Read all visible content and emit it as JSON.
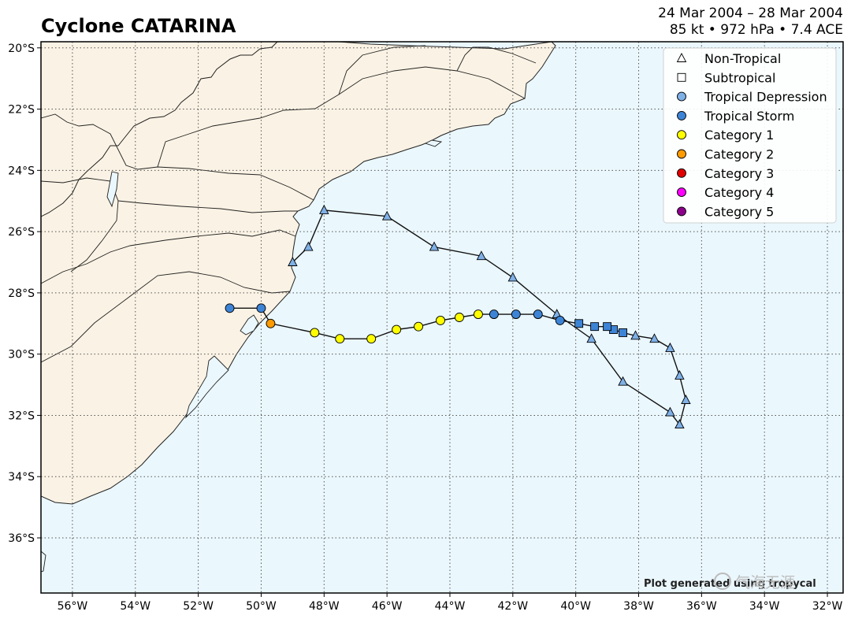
{
  "header": {
    "title": "Cyclone CATARINA",
    "dates": "24 Mar 2004 – 28 Mar 2004",
    "stats": "85 kt • 972 hPa • 7.4 ACE"
  },
  "colors": {
    "land": "#faf2e4",
    "ocean": "#eaf7fd",
    "track": "#111111",
    "tropical_depression": "#7fb0e6",
    "tropical_storm": "#3d84d6",
    "category1": "#ffff00",
    "category2": "#ff9b00",
    "category3": "#e00000",
    "category4": "#ff00ff",
    "category5": "#8b008b"
  },
  "chart_data": {
    "type": "map",
    "xlim": [
      -57,
      -31.5
    ],
    "ylim": [
      -37.8,
      -19.8
    ],
    "grid": true,
    "legend_position": "top-right",
    "x_ticks": [
      {
        "v": -56,
        "label": "56°W"
      },
      {
        "v": -54,
        "label": "54°W"
      },
      {
        "v": -52,
        "label": "52°W"
      },
      {
        "v": -50,
        "label": "50°W"
      },
      {
        "v": -48,
        "label": "48°W"
      },
      {
        "v": -46,
        "label": "46°W"
      },
      {
        "v": -44,
        "label": "44°W"
      },
      {
        "v": -42,
        "label": "42°W"
      },
      {
        "v": -40,
        "label": "40°W"
      },
      {
        "v": -38,
        "label": "38°W"
      },
      {
        "v": -36,
        "label": "36°W"
      },
      {
        "v": -34,
        "label": "34°W"
      },
      {
        "v": -32,
        "label": "32°W"
      }
    ],
    "y_ticks": [
      {
        "v": -20,
        "label": "20°S"
      },
      {
        "v": -22,
        "label": "22°S"
      },
      {
        "v": -24,
        "label": "24°S"
      },
      {
        "v": -26,
        "label": "26°S"
      },
      {
        "v": -28,
        "label": "28°S"
      },
      {
        "v": -30,
        "label": "30°S"
      },
      {
        "v": -32,
        "label": "32°S"
      },
      {
        "v": -34,
        "label": "34°S"
      },
      {
        "v": -36,
        "label": "36°S"
      }
    ],
    "legend": [
      {
        "label": "Non-Tropical",
        "marker": "triangle",
        "cat": "NT"
      },
      {
        "label": "Subtropical",
        "marker": "square",
        "cat": "SS"
      },
      {
        "label": "Tropical Depression",
        "marker": "circle",
        "cat": "TD"
      },
      {
        "label": "Tropical Storm",
        "marker": "circle",
        "cat": "TS"
      },
      {
        "label": "Category 1",
        "marker": "circle",
        "cat": "C1"
      },
      {
        "label": "Category 2",
        "marker": "circle",
        "cat": "C2"
      },
      {
        "label": "Category 3",
        "marker": "circle",
        "cat": "C3"
      },
      {
        "label": "Category 4",
        "marker": "circle",
        "cat": "C4"
      },
      {
        "label": "Category 5",
        "marker": "circle",
        "cat": "C5"
      }
    ],
    "track": [
      {
        "lon": -49.0,
        "lat": -27.0,
        "cat": "NT"
      },
      {
        "lon": -48.5,
        "lat": -26.5,
        "cat": "NT"
      },
      {
        "lon": -48.0,
        "lat": -25.3,
        "cat": "NT"
      },
      {
        "lon": -46.0,
        "lat": -25.5,
        "cat": "NT"
      },
      {
        "lon": -44.5,
        "lat": -26.5,
        "cat": "NT"
      },
      {
        "lon": -43.0,
        "lat": -26.8,
        "cat": "NT"
      },
      {
        "lon": -42.0,
        "lat": -27.5,
        "cat": "NT"
      },
      {
        "lon": -40.6,
        "lat": -28.7,
        "cat": "NT"
      },
      {
        "lon": -39.5,
        "lat": -29.5,
        "cat": "NT"
      },
      {
        "lon": -38.5,
        "lat": -30.9,
        "cat": "NT"
      },
      {
        "lon": -37.0,
        "lat": -31.9,
        "cat": "NT"
      },
      {
        "lon": -36.7,
        "lat": -32.3,
        "cat": "NT"
      },
      {
        "lon": -36.5,
        "lat": -31.5,
        "cat": "NT"
      },
      {
        "lon": -36.7,
        "lat": -30.7,
        "cat": "NT"
      },
      {
        "lon": -37.0,
        "lat": -29.8,
        "cat": "NT"
      },
      {
        "lon": -37.5,
        "lat": -29.5,
        "cat": "NT"
      },
      {
        "lon": -38.1,
        "lat": -29.4,
        "cat": "NT"
      },
      {
        "lon": -38.5,
        "lat": -29.3,
        "cat": "SS"
      },
      {
        "lon": -38.8,
        "lat": -29.2,
        "cat": "SS"
      },
      {
        "lon": -39.0,
        "lat": -29.1,
        "cat": "SS"
      },
      {
        "lon": -39.4,
        "lat": -29.1,
        "cat": "SS"
      },
      {
        "lon": -39.9,
        "lat": -29.0,
        "cat": "SS"
      },
      {
        "lon": -40.5,
        "lat": -28.9,
        "cat": "TS"
      },
      {
        "lon": -41.2,
        "lat": -28.7,
        "cat": "TS"
      },
      {
        "lon": -41.9,
        "lat": -28.7,
        "cat": "TS"
      },
      {
        "lon": -42.6,
        "lat": -28.7,
        "cat": "TS"
      },
      {
        "lon": -43.1,
        "lat": -28.7,
        "cat": "C1"
      },
      {
        "lon": -43.7,
        "lat": -28.8,
        "cat": "C1"
      },
      {
        "lon": -44.3,
        "lat": -28.9,
        "cat": "C1"
      },
      {
        "lon": -45.0,
        "lat": -29.1,
        "cat": "C1"
      },
      {
        "lon": -45.7,
        "lat": -29.2,
        "cat": "C1"
      },
      {
        "lon": -46.5,
        "lat": -29.5,
        "cat": "C1"
      },
      {
        "lon": -47.5,
        "lat": -29.5,
        "cat": "C1"
      },
      {
        "lon": -48.3,
        "lat": -29.3,
        "cat": "C1"
      },
      {
        "lon": -49.7,
        "lat": -29.0,
        "cat": "C2"
      },
      {
        "lon": -50.0,
        "lat": -28.5,
        "cat": "TS"
      },
      {
        "lon": -51.0,
        "lat": -28.5,
        "cat": "TS"
      }
    ]
  },
  "footer": {
    "credit": "Plot generated using tropycal",
    "watermark": "气海无涯"
  }
}
